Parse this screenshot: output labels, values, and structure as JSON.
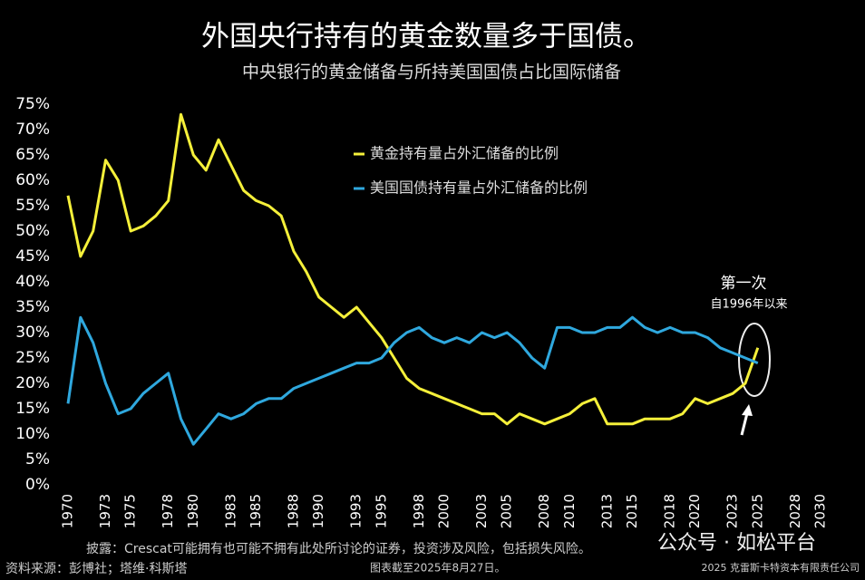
{
  "chart_data": {
    "type": "line",
    "title": "外国央行持有的黄金数量多于国债。",
    "subtitle": "中央银行的黄金储备与所持美国国债占比国际储备",
    "x": [
      1970,
      1971,
      1972,
      1973,
      1974,
      1975,
      1976,
      1977,
      1978,
      1979,
      1980,
      1981,
      1982,
      1983,
      1984,
      1985,
      1986,
      1987,
      1988,
      1989,
      1990,
      1991,
      1992,
      1993,
      1994,
      1995,
      1996,
      1997,
      1998,
      1999,
      2000,
      2001,
      2002,
      2003,
      2004,
      2005,
      2006,
      2007,
      2008,
      2009,
      2010,
      2011,
      2012,
      2013,
      2014,
      2015,
      2016,
      2017,
      2018,
      2019,
      2020,
      2021,
      2022,
      2023,
      2024,
      2025
    ],
    "series": [
      {
        "name": "黄金持有量占外汇储备的比例",
        "color": "#f5f03a",
        "values": [
          57,
          45,
          50,
          64,
          60,
          50,
          51,
          53,
          56,
          73,
          65,
          62,
          68,
          63,
          58,
          56,
          55,
          53,
          46,
          42,
          37,
          35,
          33,
          35,
          32,
          29,
          25,
          21,
          19,
          18,
          17,
          16,
          15,
          14,
          14,
          12,
          14,
          13,
          12,
          13,
          14,
          16,
          17,
          12,
          12,
          12,
          13,
          13,
          13,
          14,
          17,
          16,
          17,
          18,
          20,
          27
        ]
      },
      {
        "name": "美国国债持有量占外汇储备的比例",
        "color": "#2fa8de",
        "values": [
          16,
          33,
          28,
          20,
          14,
          15,
          18,
          20,
          22,
          13,
          8,
          11,
          14,
          13,
          14,
          16,
          17,
          17,
          19,
          20,
          21,
          22,
          23,
          24,
          24,
          25,
          28,
          30,
          31,
          29,
          28,
          29,
          28,
          30,
          29,
          30,
          28,
          25,
          23,
          31,
          31,
          30,
          30,
          31,
          31,
          33,
          31,
          30,
          31,
          30,
          30,
          29,
          27,
          26,
          25,
          24
        ]
      }
    ],
    "xlim": [
      1970,
      2030
    ],
    "xticks": [
      1970,
      1973,
      1975,
      1978,
      1980,
      1983,
      1985,
      1988,
      1990,
      1993,
      1995,
      1998,
      2000,
      2003,
      2005,
      2008,
      2010,
      2013,
      2015,
      2018,
      2020,
      2023,
      2025,
      2028,
      2030
    ],
    "ylim": [
      0,
      75
    ],
    "yticks": [
      {
        "value": 0,
        "label": "0%"
      },
      {
        "value": 5,
        "label": "5%"
      },
      {
        "value": 10,
        "label": "10%"
      },
      {
        "value": 15,
        "label": "15%"
      },
      {
        "value": 20,
        "label": "20%"
      },
      {
        "value": 25,
        "label": "25%"
      },
      {
        "value": 30,
        "label": "30%"
      },
      {
        "value": 35,
        "label": "35%"
      },
      {
        "value": 40,
        "label": "40%"
      },
      {
        "value": 45,
        "label": "45%"
      },
      {
        "value": 50,
        "label": "50%"
      },
      {
        "value": 55,
        "label": "55%"
      },
      {
        "value": 60,
        "label": "60%"
      },
      {
        "value": 65,
        "label": "65%"
      },
      {
        "value": 70,
        "label": "70%"
      },
      {
        "value": 75,
        "label": "75%"
      }
    ],
    "grid": false,
    "legend": "upper center",
    "annotations": [
      "第一次",
      "自1996年以来"
    ]
  },
  "footer": {
    "disclosure": "披露：Crescat可能拥有也可能不拥有此处所讨论的证券，投资涉及风险，包括损失风险。",
    "source": "资料来源：彭博社；塔维·科斯塔",
    "date": "图表截至2025年8月27日。",
    "copyright": "2025 克雷斯卡特资本有限责任公司",
    "watermark": "公众号 · 如松平台"
  }
}
